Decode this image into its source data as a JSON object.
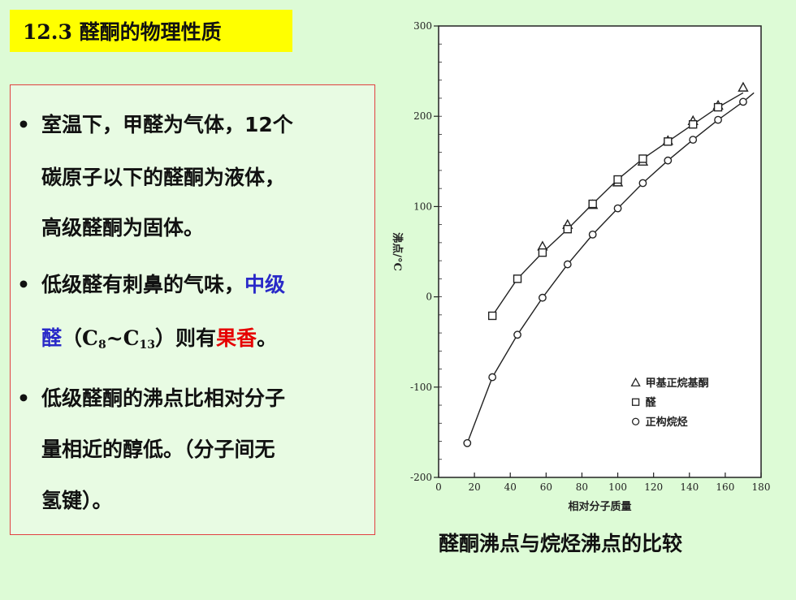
{
  "slide": {
    "title": "12.3 醛酮的物理性质",
    "caption": "醛酮沸点与烷烃沸点的比较"
  },
  "bullets": {
    "b1_l1": "室温下，甲醛为气体，12个",
    "b1_l2": "碳原子以下的醛酮为液体，",
    "b1_l3": "高级醛酮为固体。",
    "b2_l1_a": "低级醛有刺鼻的气味，",
    "b2_l1_b": "中级",
    "b2_l2_a": "醛",
    "b2_l2_b": "（",
    "b2_l2_c1": "C",
    "b2_l2_sub1": "8",
    "b2_l2_tilde": "~C",
    "b2_l2_sub2": "13",
    "b2_l2_d": "）则有",
    "b2_l2_e": "果香",
    "b2_l2_f": "。",
    "b3_l1": "低级醛酮的沸点比相对分子",
    "b3_l2": "量相近的醇低。（分子间无",
    "b3_l3": "氢键）。",
    "bullet_symbol": "•"
  },
  "colors": {
    "background": "#ddfbd6",
    "title_bg": "#ffff00",
    "box_border": "#e04040",
    "blue_text": "#2929c8",
    "red_text": "#e60000"
  },
  "chart_data": {
    "type": "scatter",
    "xlabel": "相对分子质量",
    "ylabel": "沸点/°C",
    "xlim": [
      0,
      180
    ],
    "ylim": [
      -200,
      300
    ],
    "x_ticks": [
      "0",
      "20",
      "40",
      "60",
      "80",
      "100",
      "120",
      "140",
      "160",
      "180"
    ],
    "y_ticks": [
      "300",
      "200",
      "100",
      "0",
      "-100",
      "-200"
    ],
    "legend_position": "right, lower middle",
    "series": [
      {
        "name": "甲基正烷基酮",
        "marker": "triangle",
        "x": [
          58,
          72,
          86,
          100,
          114,
          128,
          142,
          156,
          170
        ],
        "y": [
          56,
          80,
          102,
          127,
          150,
          173,
          195,
          212,
          232
        ]
      },
      {
        "name": "醛",
        "marker": "square",
        "x": [
          30,
          44,
          58,
          72,
          86,
          100,
          114,
          128,
          142,
          156
        ],
        "y": [
          -21,
          20,
          49,
          75,
          103,
          130,
          153,
          172,
          191,
          210
        ]
      },
      {
        "name": "正构烷烃",
        "marker": "circle",
        "x": [
          16,
          30,
          44,
          58,
          72,
          86,
          100,
          114,
          128,
          142,
          156,
          170
        ],
        "y": [
          -162,
          -89,
          -42,
          -1,
          36,
          69,
          98,
          126,
          151,
          174,
          196,
          216
        ]
      }
    ]
  }
}
